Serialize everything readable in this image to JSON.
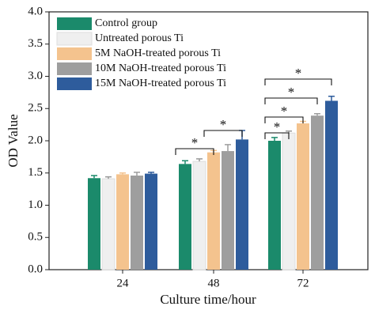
{
  "chart_data": {
    "type": "bar",
    "y_label": "OD Value",
    "x_label": "Culture time/hour",
    "categories": [
      "24",
      "48",
      "72"
    ],
    "series": [
      {
        "name": "Control group",
        "color": "#1b8a6b",
        "values": [
          1.42,
          1.64,
          2.0
        ],
        "errors": [
          0.04,
          0.05,
          0.05
        ]
      },
      {
        "name": "Untreated porous Ti",
        "color": "#efefef",
        "values": [
          1.41,
          1.68,
          2.12
        ],
        "errors": [
          0.03,
          0.04,
          0.03
        ]
      },
      {
        "name": "5M NaOH-treated porous Ti",
        "color": "#f4c38e",
        "values": [
          1.48,
          1.82,
          2.27
        ],
        "errors": [
          0.02,
          0.03,
          0.03
        ]
      },
      {
        "name": "10M NaOH-treated porous Ti",
        "color": "#9e9e9e",
        "values": [
          1.46,
          1.84,
          2.39
        ],
        "errors": [
          0.05,
          0.1,
          0.03
        ]
      },
      {
        "name": "15M NaOH-treated porous Ti",
        "color": "#2e5c9c",
        "values": [
          1.49,
          2.02,
          2.62
        ],
        "errors": [
          0.02,
          0.14,
          0.07
        ]
      }
    ],
    "annotations": [
      "*",
      "*",
      "*",
      "*",
      "*",
      "*"
    ],
    "ylim": [
      0,
      4
    ],
    "yticks": [
      {
        "value": 0,
        "label": "0.0"
      },
      {
        "value": 0.5,
        "label": "0.5"
      },
      {
        "value": 1,
        "label": "1.0"
      },
      {
        "value": 1.5,
        "label": "1.5"
      },
      {
        "value": 2,
        "label": "2.0"
      },
      {
        "value": 2.5,
        "label": "2.5"
      },
      {
        "value": 3,
        "label": "3.0"
      },
      {
        "value": 3.5,
        "label": "3.5"
      },
      {
        "value": 4,
        "label": "4.0"
      }
    ],
    "legend": "upper left"
  }
}
